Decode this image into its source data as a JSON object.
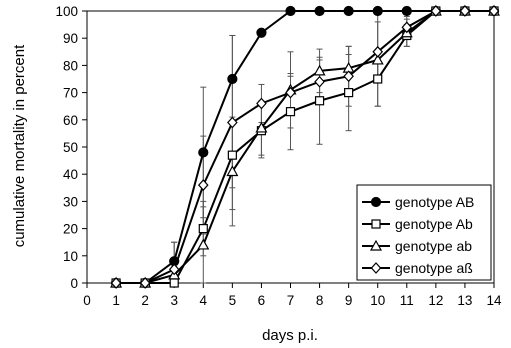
{
  "chart_data": {
    "type": "line",
    "title": "",
    "xlabel": "days p.i.",
    "ylabel": "cumulative mortality in percent",
    "xlim": [
      0,
      14
    ],
    "ylim": [
      0,
      100
    ],
    "x_ticks": [
      "0",
      "1",
      "2",
      "3",
      "4",
      "5",
      "6",
      "7",
      "8",
      "9",
      "10",
      "11",
      "12",
      "13",
      "14"
    ],
    "y_ticks": [
      "0",
      "10",
      "20",
      "30",
      "40",
      "50",
      "60",
      "70",
      "80",
      "90",
      "100"
    ],
    "grid": false,
    "legend_position": "bottom-right",
    "x": [
      1,
      2,
      3,
      4,
      5,
      6,
      7,
      8,
      9,
      10,
      11,
      12,
      13,
      14
    ],
    "series": [
      {
        "name": "genotype AB",
        "marker": "filled-circle",
        "values": [
          0,
          0,
          8,
          48,
          75,
          92,
          100,
          100,
          100,
          100,
          100,
          100,
          100,
          100
        ],
        "error": [
          0,
          0,
          7,
          24,
          16,
          0,
          0,
          0,
          0,
          0,
          0,
          0,
          0,
          0
        ]
      },
      {
        "name": "genotype Ab",
        "marker": "open-square",
        "values": [
          0,
          0,
          0,
          20,
          47,
          56,
          63,
          67,
          70,
          75,
          91,
          100,
          100,
          100
        ],
        "error": [
          0,
          0,
          0,
          10,
          12,
          10,
          14,
          16,
          14,
          10,
          4,
          0,
          0,
          0
        ]
      },
      {
        "name": "genotype ab",
        "marker": "open-triangle",
        "values": [
          0,
          0,
          3,
          14,
          41,
          57,
          71,
          78,
          79,
          82,
          92,
          100,
          100,
          100
        ],
        "error": [
          0,
          0,
          3,
          14,
          20,
          10,
          14,
          8,
          8,
          17,
          5,
          0,
          0,
          0
        ]
      },
      {
        "name": "genotype aß",
        "marker": "open-diamond",
        "values": [
          0,
          0,
          5,
          36,
          59,
          66,
          70,
          74,
          76,
          85,
          94,
          100,
          100,
          100
        ],
        "error": [
          0,
          0,
          10,
          18,
          32,
          7,
          6,
          8,
          11,
          11,
          4,
          0,
          0,
          0
        ]
      }
    ]
  }
}
